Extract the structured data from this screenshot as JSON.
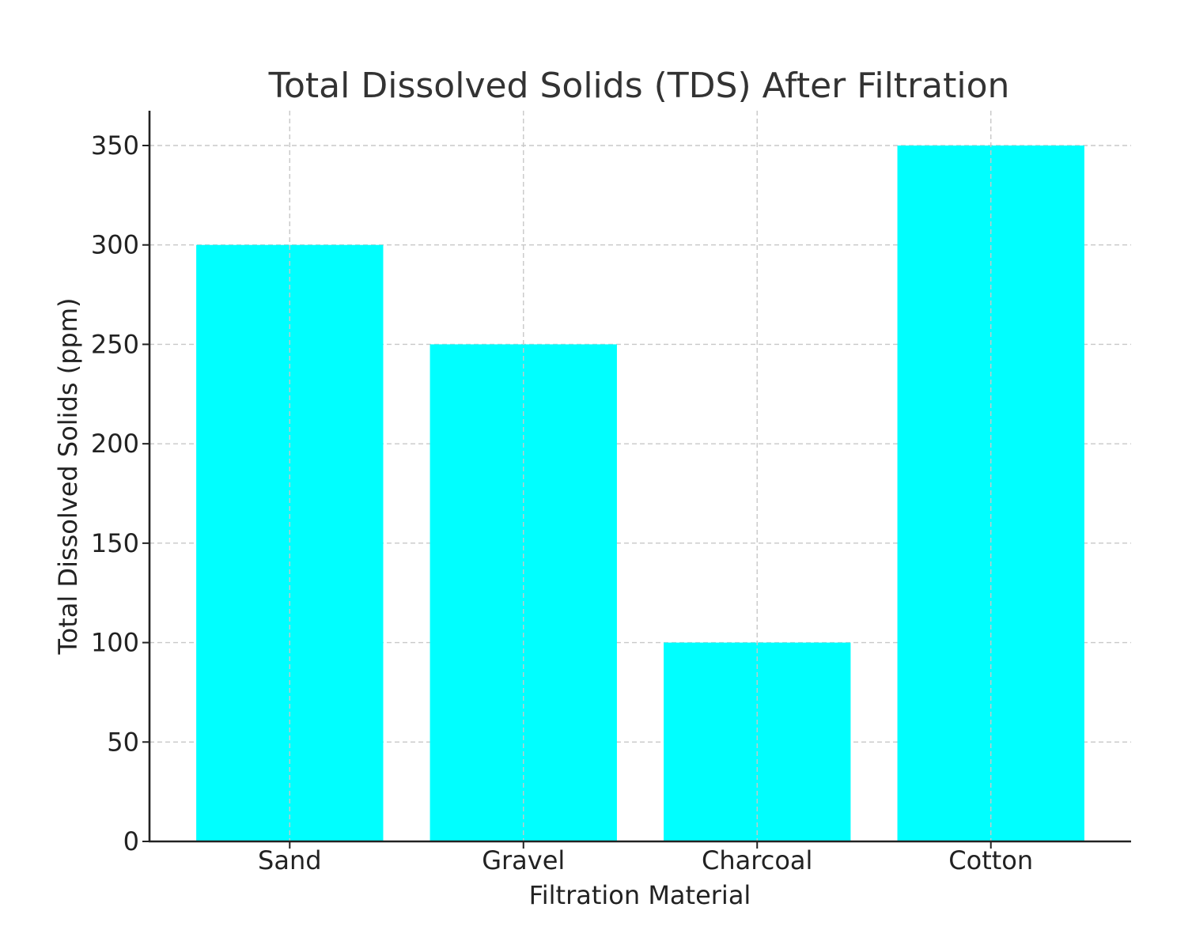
{
  "chart_data": {
    "type": "bar",
    "title": "Total Dissolved Solids (TDS) After Filtration",
    "xlabel": "Filtration Material",
    "ylabel": "Total Dissolved Solids (ppm)",
    "categories": [
      "Sand",
      "Gravel",
      "Charcoal",
      "Cotton"
    ],
    "values": [
      300,
      250,
      100,
      350
    ],
    "ylim": [
      0,
      367.5
    ],
    "yticks": [
      0,
      50,
      100,
      150,
      200,
      250,
      300,
      350
    ],
    "grid": true,
    "bar_color": "#00ffff"
  }
}
